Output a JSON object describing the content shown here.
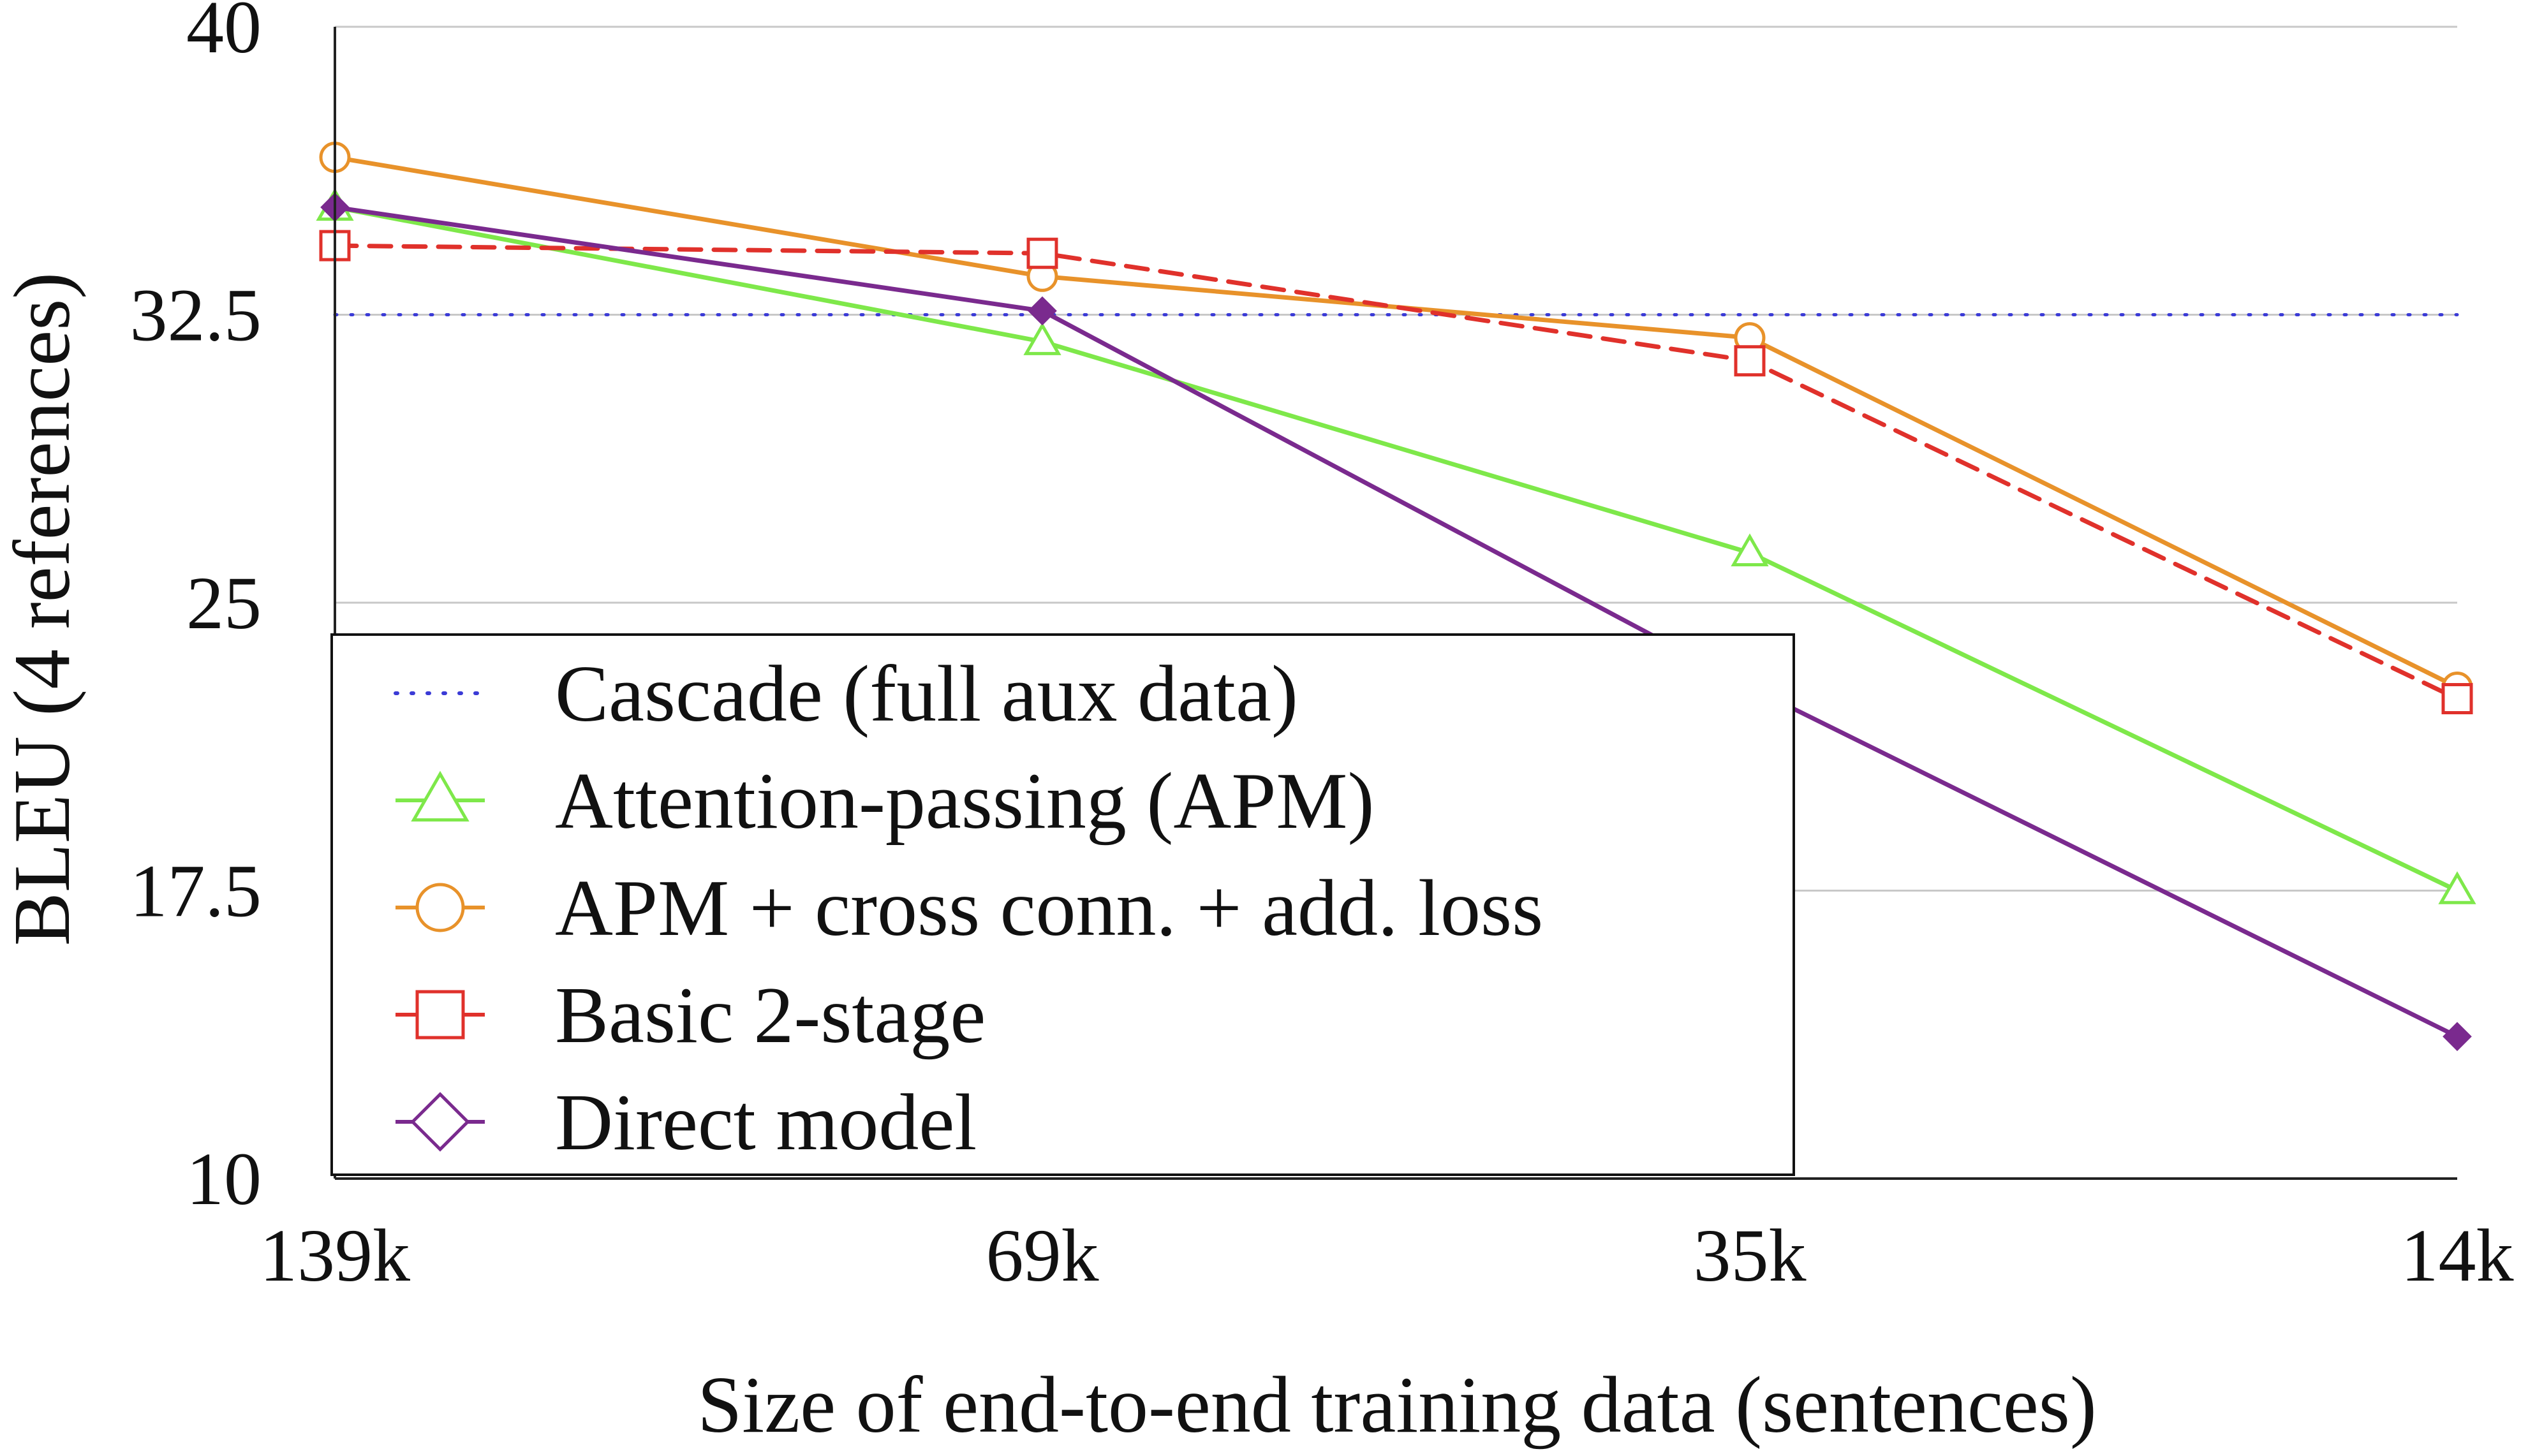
{
  "chart_data": {
    "type": "line",
    "xlabel": "Size of end-to-end training data (sentences)",
    "ylabel": "BLEU (4 references)",
    "categories": [
      "139k",
      "69k",
      "35k",
      "14k"
    ],
    "ylim": [
      10,
      40
    ],
    "yticks": [
      "10",
      "17.5",
      "25",
      "32.5",
      "40"
    ],
    "ytick_values": [
      10,
      17.5,
      25,
      32.5,
      40
    ],
    "grid": "horizontal",
    "legend_position": "lower-left",
    "series": [
      {
        "name": "Cascade (full aux data)",
        "values": [
          32.5,
          32.5,
          32.5,
          32.5
        ],
        "color": "#3b3bd6",
        "dash": "dotted",
        "marker": "none"
      },
      {
        "name": "Attention-passing (APM)",
        "values": [
          35.3,
          31.8,
          26.3,
          17.5
        ],
        "color": "#7ee84a",
        "dash": "solid",
        "marker": "triangle"
      },
      {
        "name": "APM + cross conn. + add. loss",
        "values": [
          36.6,
          33.5,
          31.9,
          22.8
        ],
        "color": "#e8922a",
        "dash": "solid",
        "marker": "circle"
      },
      {
        "name": "Basic 2-stage",
        "values": [
          34.3,
          34.1,
          31.3,
          22.5
        ],
        "color": "#e0312b",
        "dash": "dashed",
        "marker": "square"
      },
      {
        "name": "Direct model",
        "values": [
          35.3,
          32.6,
          22.8,
          13.7
        ],
        "color": "#7a2a8e",
        "dash": "solid",
        "marker": "diamond"
      }
    ]
  }
}
